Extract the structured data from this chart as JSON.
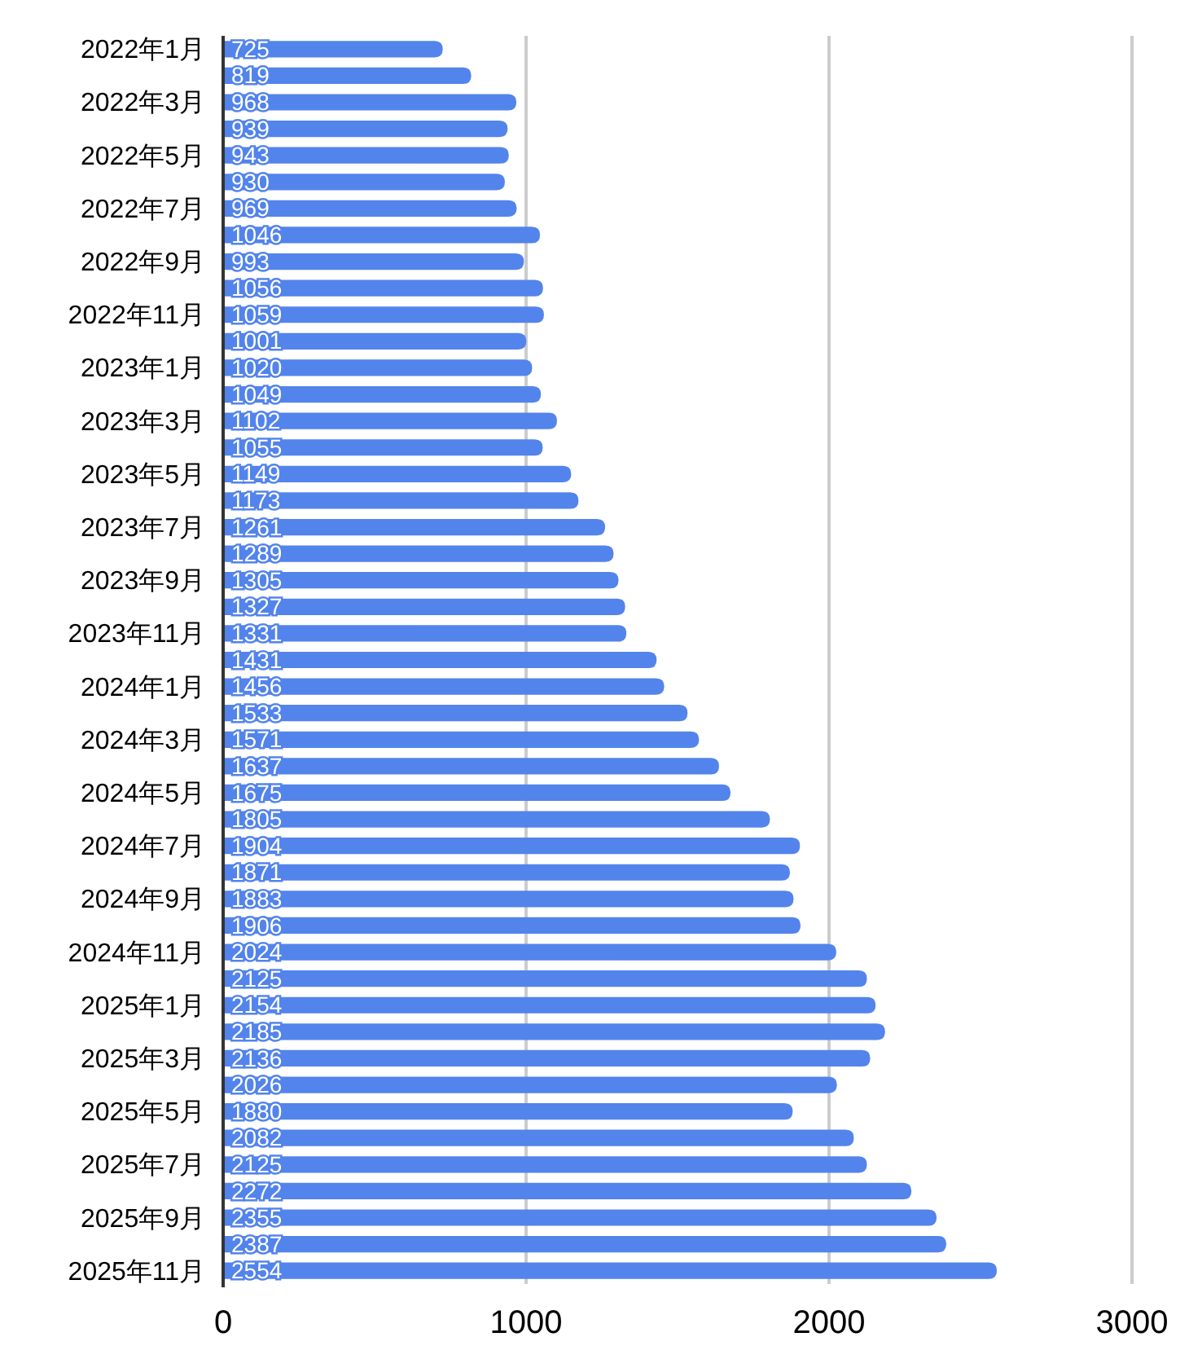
{
  "chart_data": {
    "type": "bar",
    "orientation": "horizontal",
    "categories": [
      "2022年1月",
      null,
      "2022年3月",
      null,
      "2022年5月",
      null,
      "2022年7月",
      null,
      "2022年9月",
      null,
      "2022年11月",
      null,
      "2023年1月",
      null,
      "2023年3月",
      null,
      "2023年5月",
      null,
      "2023年7月",
      null,
      "2023年9月",
      null,
      "2023年11月",
      null,
      "2024年1月",
      null,
      "2024年3月",
      null,
      "2024年5月",
      null,
      "2024年7月",
      null,
      "2024年9月",
      null,
      "2024年11月",
      null,
      "2025年1月",
      null,
      "2025年3月",
      null,
      "2025年5月",
      null,
      "2025年7月",
      null,
      "2025年9月",
      null,
      "2025年11月"
    ],
    "values": [
      725,
      819,
      968,
      939,
      943,
      930,
      969,
      1046,
      993,
      1056,
      1059,
      1001,
      1020,
      1049,
      1102,
      1055,
      1149,
      1173,
      1261,
      1289,
      1305,
      1327,
      1331,
      1431,
      1456,
      1533,
      1571,
      1637,
      1675,
      1805,
      1904,
      1871,
      1883,
      1906,
      2024,
      2125,
      2154,
      2185,
      2136,
      2026,
      1880,
      2082,
      2125,
      2272,
      2355,
      2387,
      2554
    ],
    "color": "#5384ec",
    "xlim": [
      0,
      3000
    ],
    "xticks": [
      0,
      1000,
      2000,
      3000
    ],
    "grid": "x",
    "data_labels": true
  }
}
